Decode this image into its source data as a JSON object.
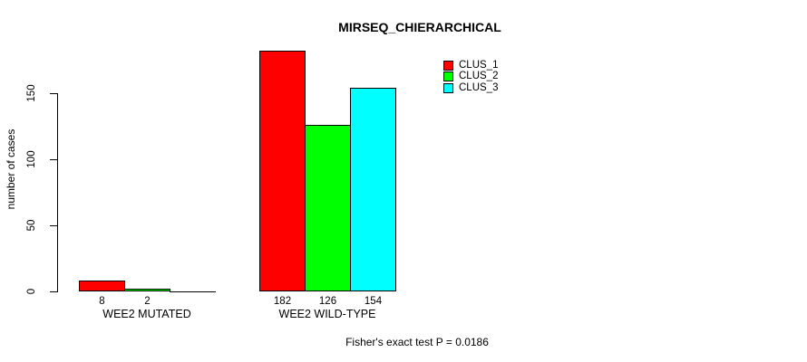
{
  "chart_data": {
    "type": "bar",
    "title": "MIRSEQ_CHIERARCHICAL",
    "ylabel": "number of cases",
    "xlabel": "",
    "categories": [
      "WEE2 MUTATED",
      "WEE2 WILD-TYPE"
    ],
    "series": [
      {
        "name": "CLUS_1",
        "color": "#ff0000",
        "values": [
          8,
          182
        ]
      },
      {
        "name": "CLUS_2",
        "color": "#00ff00",
        "values": [
          2,
          126
        ]
      },
      {
        "name": "CLUS_3",
        "color": "#00ffff",
        "values": [
          0,
          154
        ]
      }
    ],
    "bar_value_labels": [
      [
        "8",
        "2",
        ""
      ],
      [
        "182",
        "126",
        "154"
      ]
    ],
    "y_ticks": [
      0,
      50,
      100,
      150
    ],
    "ylim": [
      0,
      150
    ],
    "grid": false,
    "legend_position": "top-right",
    "annotation": "Fisher's exact test P = 0.0186"
  },
  "colors": {
    "axis": "#000000",
    "text": "#000000",
    "background": "#ffffff"
  }
}
